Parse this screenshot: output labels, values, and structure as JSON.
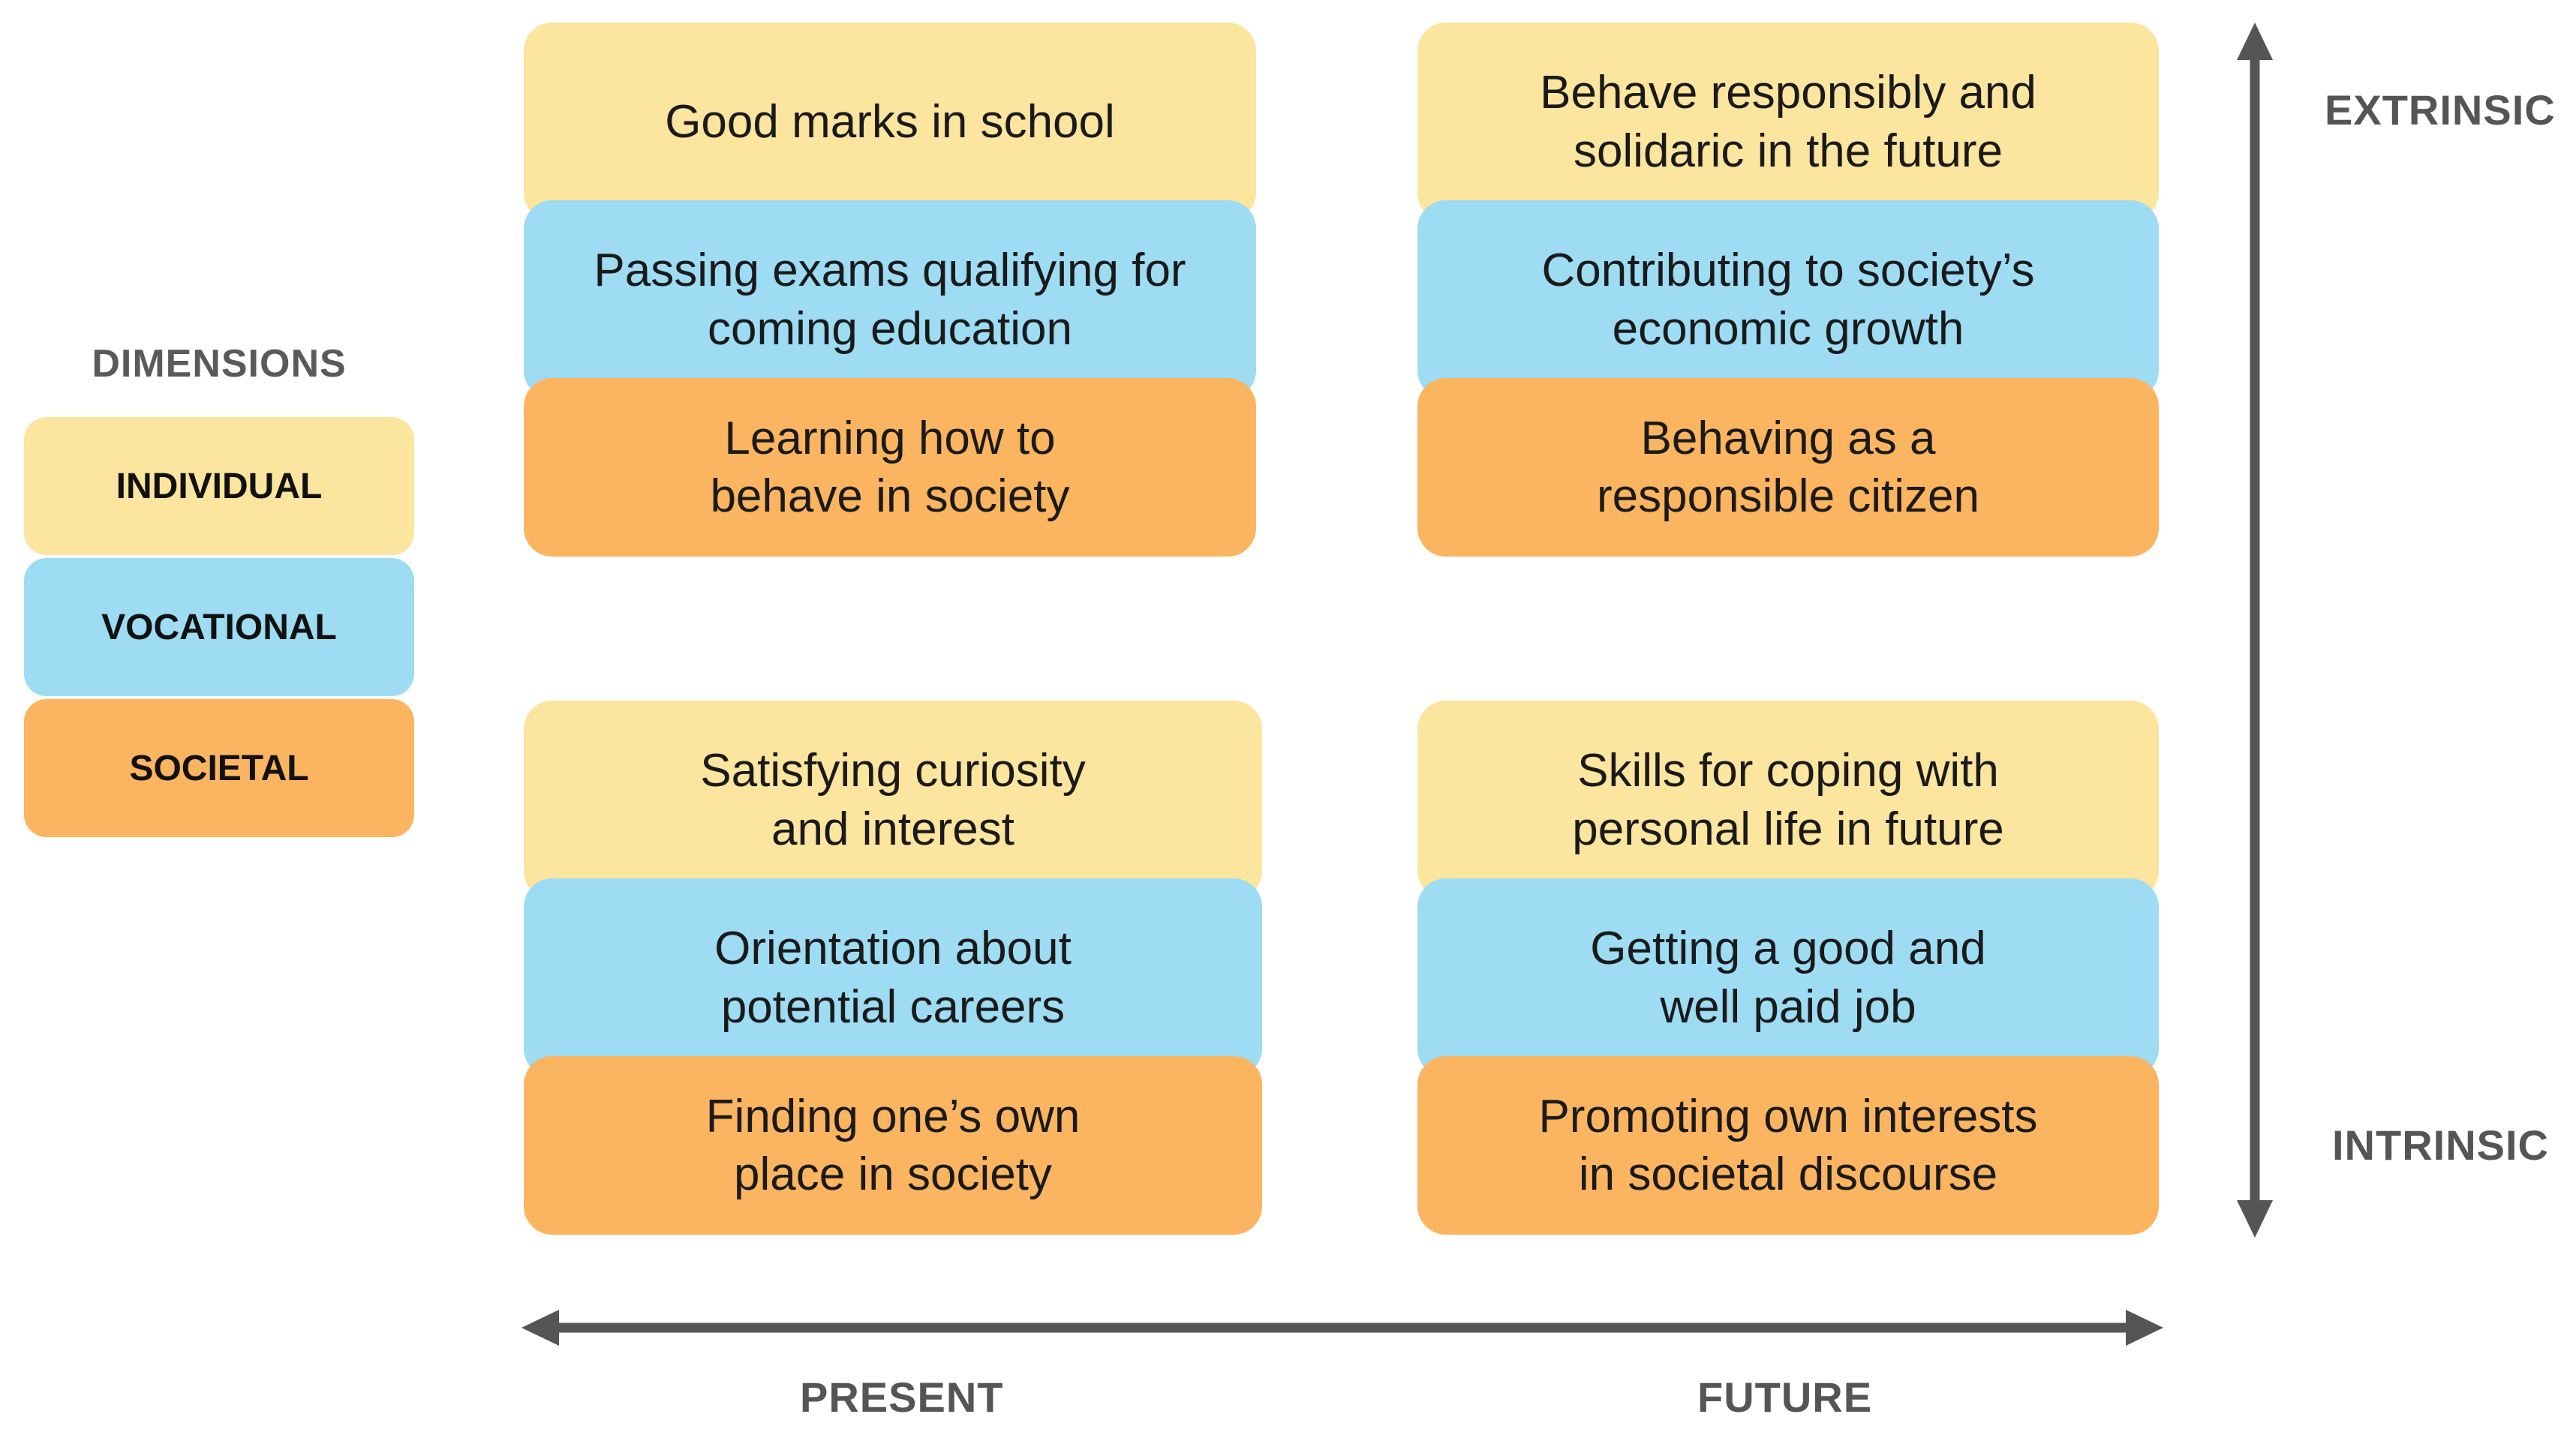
{
  "colors": {
    "individual": "#fbe59f",
    "vocational": "#9ddcf3",
    "societal": "#fbb460",
    "axis": "#555555"
  },
  "legend": {
    "title": "DIMENSIONS",
    "individual": "INDIVIDUAL",
    "vocational": "VOCATIONAL",
    "societal": "SOCIETAL"
  },
  "axes": {
    "top": "EXTRINSIC",
    "bottom": "INTRINSIC",
    "left": "PRESENT",
    "right": "FUTURE"
  },
  "quadrants": {
    "present_extrinsic": {
      "individual": "Good marks in school",
      "vocational": "Passing exams qualifying for\ncoming education",
      "societal": "Learning how to\nbehave in society"
    },
    "future_extrinsic": {
      "individual": "Behave responsibly and\nsolidaric in the future",
      "vocational": "Contributing to society’s\neconomic growth",
      "societal": "Behaving as a\nresponsible citizen"
    },
    "present_intrinsic": {
      "individual": "Satisfying curiosity\nand interest",
      "vocational": "Orientation about\npotential careers",
      "societal": "Finding one’s own\nplace in society"
    },
    "future_intrinsic": {
      "individual": "Skills for coping with\npersonal life in future",
      "vocational": "Getting a good and\nwell paid job",
      "societal": "Promoting own interests\nin societal discourse"
    }
  }
}
